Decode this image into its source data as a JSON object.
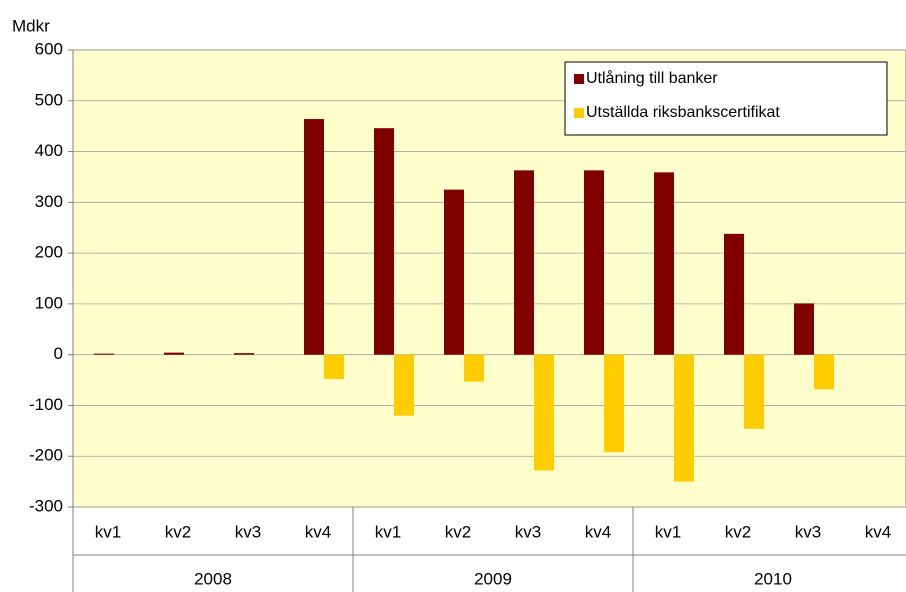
{
  "chart_data": {
    "type": "bar",
    "y_label": "Mdkr",
    "categories": [
      "kv1",
      "kv2",
      "kv3",
      "kv4",
      "kv1",
      "kv2",
      "kv3",
      "kv4",
      "kv1",
      "kv2",
      "kv3",
      "kv4"
    ],
    "groups": [
      "2008",
      "2009",
      "2010"
    ],
    "series": [
      {
        "name": "Utlåning till banker",
        "color": "#800000",
        "values": [
          2,
          4,
          3,
          464,
          446,
          325,
          363,
          363,
          359,
          238,
          101,
          0
        ]
      },
      {
        "name": "Utställda riksbankscertifikat",
        "color": "#ffcc00",
        "values": [
          0,
          0,
          0,
          -48,
          -120,
          -53,
          -228,
          -192,
          -250,
          -146,
          -68,
          0
        ]
      }
    ],
    "ylim": [
      -300,
      600
    ],
    "yticks": [
      -300,
      -200,
      -100,
      0,
      100,
      200,
      300,
      400,
      500,
      600
    ],
    "grid": true,
    "legend": "upper right",
    "plot_background": "#ffffcc"
  }
}
